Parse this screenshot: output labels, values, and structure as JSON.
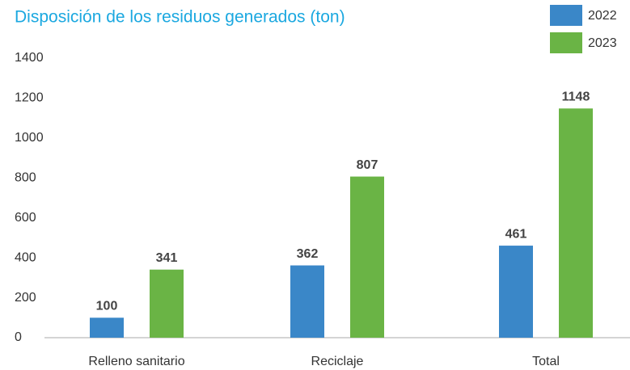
{
  "chart_data": {
    "type": "bar",
    "title": "Disposición de los residuos generados (ton)",
    "categories": [
      "Relleno sanitario",
      "Reciclaje",
      "Total"
    ],
    "series": [
      {
        "name": "2022",
        "color": "#3a87c8",
        "values": [
          100,
          362,
          461
        ]
      },
      {
        "name": "2023",
        "color": "#6ab445",
        "values": [
          341,
          807,
          1148
        ]
      }
    ],
    "ylim": [
      0,
      1400
    ],
    "yticks": [
      0,
      200,
      400,
      600,
      800,
      1000,
      1200,
      1400
    ],
    "grid": false,
    "legend": "top-right"
  }
}
